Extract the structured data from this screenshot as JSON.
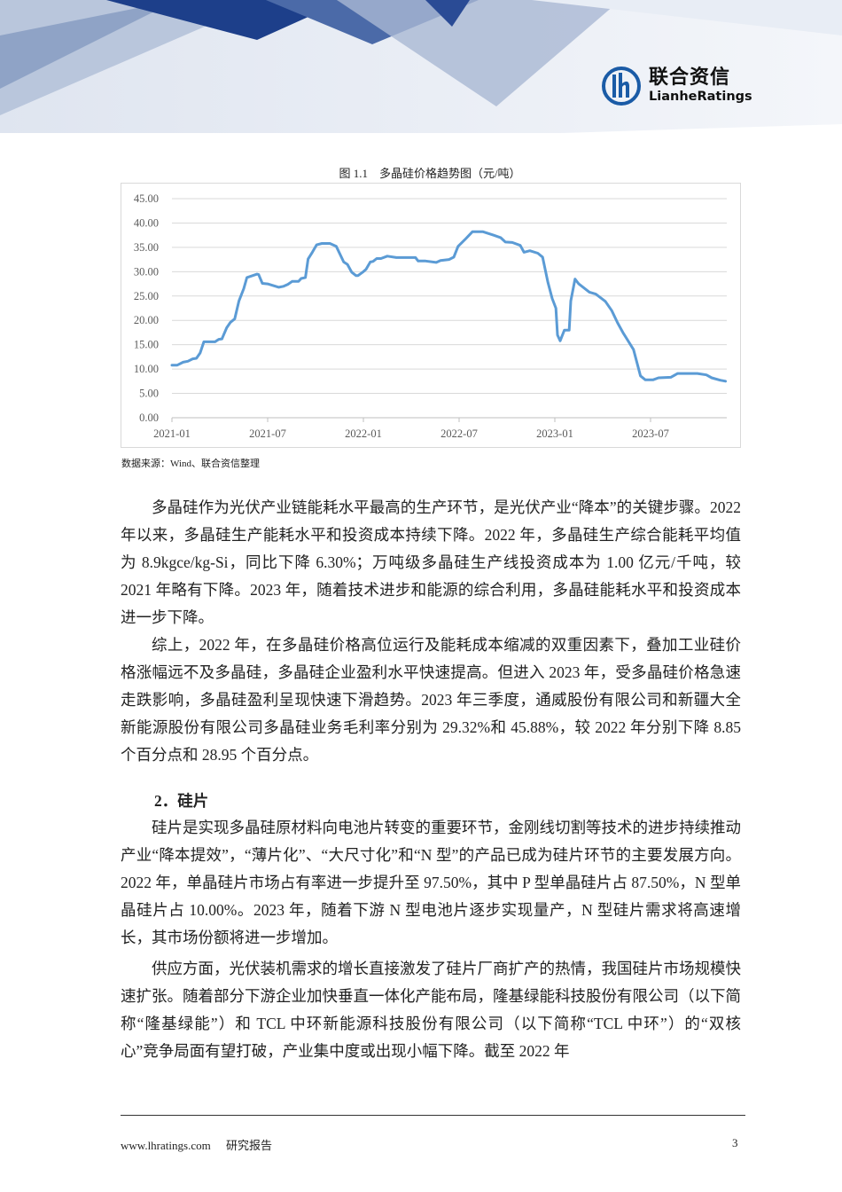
{
  "header": {
    "logo_cn": "联合资信",
    "logo_en": "LianheRatings",
    "brand_color": "#1a5ba6"
  },
  "figure": {
    "title": "图 1.1　多晶硅价格趋势图（元/吨）",
    "source": "数据来源：Wind、联合资信整理"
  },
  "chart_data": {
    "type": "line",
    "title": "",
    "xlabel": "",
    "ylabel": "",
    "ylim": [
      0,
      45
    ],
    "yticks": [
      "0.00",
      "5.00",
      "10.00",
      "15.00",
      "20.00",
      "25.00",
      "30.00",
      "35.00",
      "40.00",
      "45.00"
    ],
    "xticks": [
      "2021-01",
      "2021-07",
      "2022-01",
      "2022-07",
      "2023-01",
      "2023-07"
    ],
    "grid": true,
    "legend": "none",
    "line_color": "#5b9bd5",
    "x": [
      "2021-01-01",
      "2021-01-11",
      "2021-01-22",
      "2021-02-01",
      "2021-02-10",
      "2021-02-17",
      "2021-02-24",
      "2021-03-01",
      "2021-03-22",
      "2021-03-29",
      "2021-04-05",
      "2021-04-14",
      "2021-04-21",
      "2021-04-29",
      "2021-05-07",
      "2021-05-16",
      "2021-05-22",
      "2021-06-11",
      "2021-06-14",
      "2021-06-21",
      "2021-07-01",
      "2021-07-22",
      "2021-08-01",
      "2021-08-09",
      "2021-08-17",
      "2021-08-29",
      "2021-09-04",
      "2021-09-12",
      "2021-09-17",
      "2021-09-25",
      "2021-10-03",
      "2021-10-13",
      "2021-10-28",
      "2021-11-10",
      "2021-11-24",
      "2021-12-01",
      "2021-12-09",
      "2021-12-17",
      "2021-12-21",
      "2022-01-01",
      "2022-01-06",
      "2022-01-14",
      "2022-01-19",
      "2022-01-26",
      "2022-02-04",
      "2022-02-16",
      "2022-03-03",
      "2022-03-18",
      "2022-04-09",
      "2022-04-14",
      "2022-04-28",
      "2022-05-18",
      "2022-05-26",
      "2022-06-12",
      "2022-06-21",
      "2022-06-29",
      "2022-07-12",
      "2022-07-26",
      "2022-08-16",
      "2022-09-06",
      "2022-09-19",
      "2022-09-28",
      "2022-10-11",
      "2022-10-26",
      "2022-11-03",
      "2022-11-14",
      "2022-11-29",
      "2022-12-08",
      "2022-12-18",
      "2022-12-26",
      "2023-01-03",
      "2023-01-06",
      "2023-01-11",
      "2023-01-19",
      "2023-01-28",
      "2023-02-01",
      "2023-02-09",
      "2023-02-16",
      "2023-03-06",
      "2023-03-18",
      "2023-04-06",
      "2023-04-18",
      "2023-04-29",
      "2023-05-09",
      "2023-05-29",
      "2023-06-12",
      "2023-06-21",
      "2023-07-06",
      "2023-07-16",
      "2023-08-09",
      "2023-08-22",
      "2023-09-29",
      "2023-10-16",
      "2023-10-26",
      "2023-11-12",
      "2023-11-22"
    ],
    "values": [
      10.8,
      10.8,
      11.4,
      11.6,
      12.1,
      12.2,
      13.3,
      15.6,
      15.6,
      16.1,
      16.2,
      18.5,
      19.6,
      20.3,
      24.0,
      26.5,
      28.8,
      29.5,
      29.4,
      27.6,
      27.5,
      26.8,
      27.0,
      27.4,
      28.0,
      28.0,
      28.6,
      28.8,
      32.6,
      34.0,
      35.5,
      35.8,
      35.8,
      35.2,
      32.0,
      31.5,
      29.9,
      29.2,
      29.2,
      30.0,
      30.5,
      32.0,
      32.1,
      32.7,
      32.7,
      33.2,
      32.9,
      32.9,
      32.9,
      32.2,
      32.2,
      31.9,
      32.3,
      32.5,
      33.0,
      35.2,
      36.6,
      38.2,
      38.2,
      37.5,
      37.0,
      36.1,
      36.0,
      35.4,
      34.0,
      34.3,
      33.8,
      33.0,
      27.8,
      24.5,
      22.5,
      17.0,
      15.8,
      18.0,
      18.0,
      24.0,
      28.5,
      27.5,
      25.8,
      25.4,
      23.9,
      22.0,
      19.5,
      17.5,
      14.0,
      8.6,
      7.8,
      7.8,
      8.2,
      8.3,
      9.1,
      9.1,
      8.8,
      8.2,
      7.7,
      7.5
    ]
  },
  "body": {
    "p1": "多晶硅作为光伏产业链能耗水平最高的生产环节，是光伏产业“降本”的关键步骤。2022 年以来，多晶硅生产能耗水平和投资成本持续下降。2022 年，多晶硅生产综合能耗平均值为 8.9kgce/kg-Si，同比下降 6.30%；万吨级多晶硅生产线投资成本为 1.00 亿元/千吨，较 2021 年略有下降。2023 年，随着技术进步和能源的综合利用，多晶硅能耗水平和投资成本进一步下降。",
    "p2": "综上，2022 年，在多晶硅价格高位运行及能耗成本缩减的双重因素下，叠加工业硅价格涨幅远不及多晶硅，多晶硅企业盈利水平快速提高。但进入 2023 年，受多晶硅价格急速走跌影响，多晶硅盈利呈现快速下滑趋势。2023 年三季度，通威股份有限公司和新疆大全新能源股份有限公司多晶硅业务毛利率分别为 29.32%和 45.88%，较 2022 年分别下降 8.85 个百分点和 28.95 个百分点。",
    "heading": "2．硅片",
    "p3": "硅片是实现多晶硅原材料向电池片转变的重要环节，金刚线切割等技术的进步持续推动产业“降本提效”，“薄片化”、“大尺寸化”和“N 型”的产品已成为硅片环节的主要发展方向。2022 年，单晶硅片市场占有率进一步提升至 97.50%，其中 P 型单晶硅片占 87.50%，N 型单晶硅片占 10.00%。2023 年，随着下游 N 型电池片逐步实现量产，N 型硅片需求将高速增长，其市场份额将进一步增加。",
    "p4": "供应方面，光伏装机需求的增长直接激发了硅片厂商扩产的热情，我国硅片市场规模快速扩张。随着部分下游企业加快垂直一体化产能布局，隆基绿能科技股份有限公司（以下简称“隆基绿能”）和 TCL 中环新能源科技股份有限公司（以下简称“TCL 中环”）的“双核心”竞争局面有望打破，产业集中度或出现小幅下降。截至 2022 年"
  },
  "footer": {
    "website": "www.lhratings.com",
    "doc_type": "研究报告",
    "page_number": "3"
  }
}
